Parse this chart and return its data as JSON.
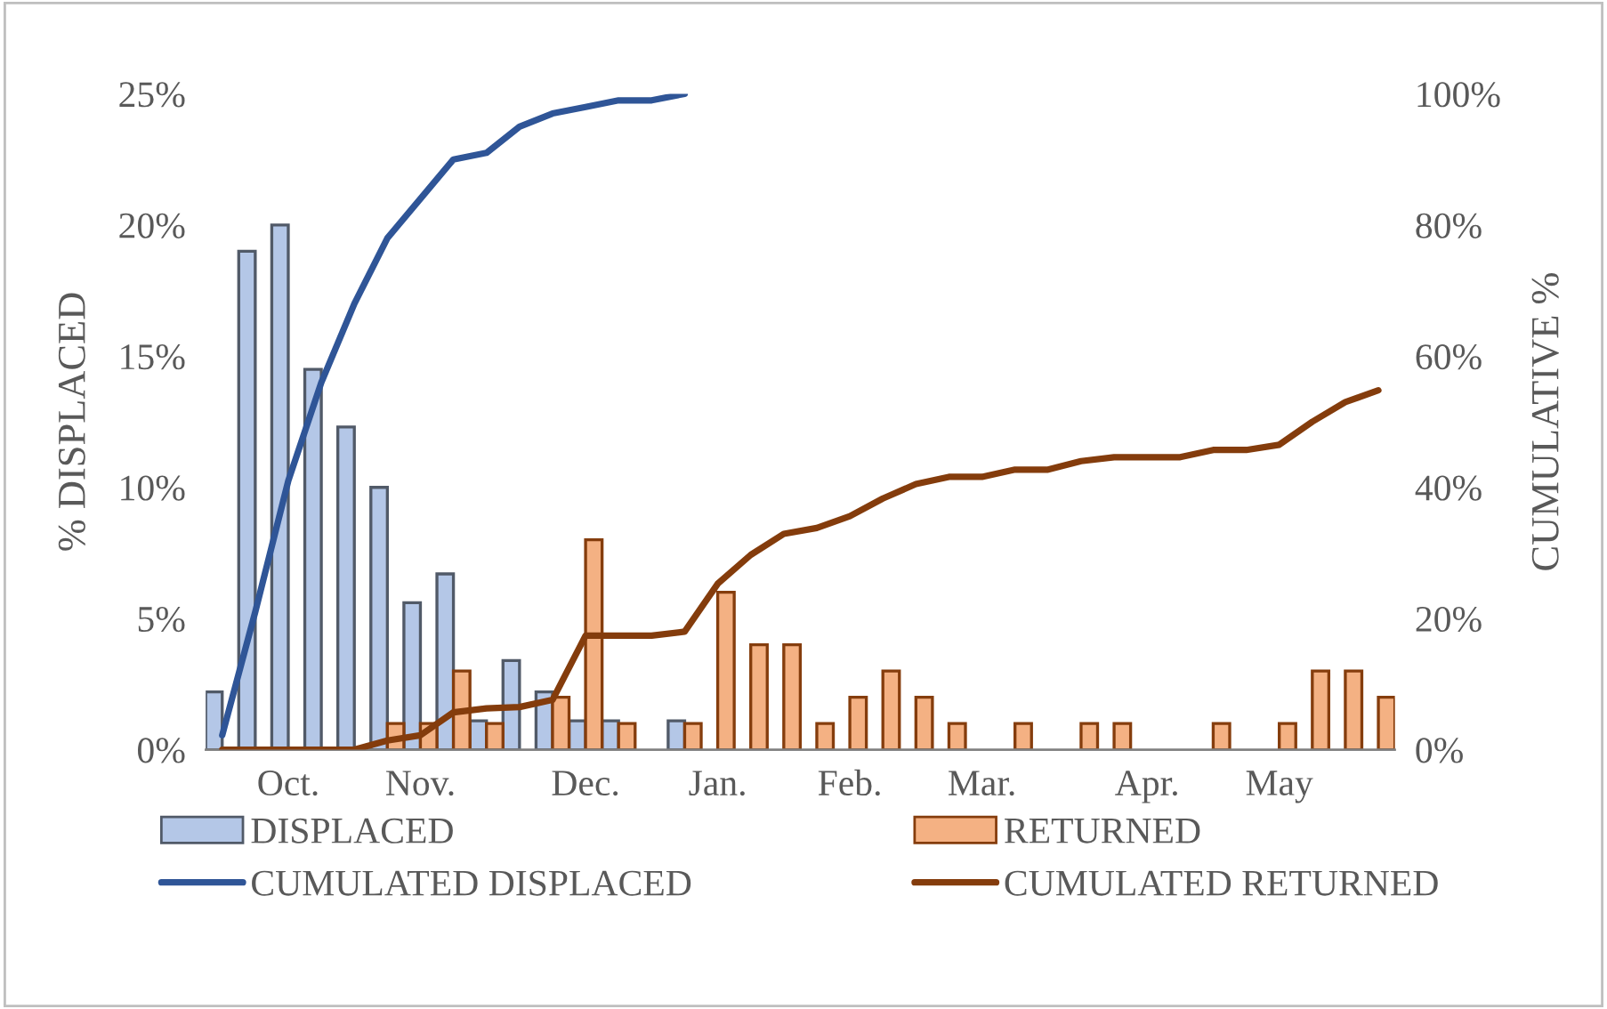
{
  "chart_data": {
    "type": "bar",
    "categories": [
      null,
      null,
      "Oct.",
      null,
      null,
      null,
      "Nov.",
      null,
      null,
      null,
      null,
      "Dec.",
      null,
      null,
      null,
      "Jan.",
      null,
      null,
      null,
      "Feb.",
      null,
      null,
      null,
      "Mar.",
      null,
      null,
      null,
      null,
      "Apr.",
      null,
      null,
      null,
      "May",
      null,
      null,
      null
    ],
    "ylabel": "% DISPLACED",
    "y2label": "CUMULATIVE %",
    "ylim": [
      0,
      25
    ],
    "yticks": [
      {
        "value": 0,
        "label": "0%"
      },
      {
        "value": 5,
        "label": "5%"
      },
      {
        "value": 10,
        "label": "10%"
      },
      {
        "value": 15,
        "label": "15%"
      },
      {
        "value": 20,
        "label": "20%"
      },
      {
        "value": 25,
        "label": "25%"
      }
    ],
    "y2lim": [
      0,
      100
    ],
    "y2ticks": [
      {
        "value": 0,
        "label": "0%"
      },
      {
        "value": 20,
        "label": "20%"
      },
      {
        "value": 40,
        "label": "40%"
      },
      {
        "value": 60,
        "label": "60%"
      },
      {
        "value": 80,
        "label": "80%"
      },
      {
        "value": 100,
        "label": "100%"
      }
    ],
    "legend": "bottom",
    "grid": false,
    "series": [
      {
        "name": "DISPLACED",
        "color": "#b4c7e7",
        "values": [
          2.2,
          19,
          20,
          14.5,
          12.3,
          10,
          5.6,
          6.7,
          1.1,
          3.4,
          2.2,
          1.1,
          1.1,
          null,
          1.1,
          null,
          null,
          null,
          null,
          null,
          null,
          null,
          null,
          null,
          null,
          null,
          null,
          null,
          null,
          null,
          null,
          null,
          null,
          null,
          null,
          null
        ]
      },
      {
        "name": "RETURNED",
        "color": "#f4b183",
        "values": [
          null,
          null,
          null,
          null,
          null,
          1,
          1,
          3,
          1,
          null,
          2,
          8,
          1,
          null,
          1,
          6,
          4,
          4,
          1,
          2,
          3,
          2,
          1,
          null,
          1,
          null,
          1,
          1,
          null,
          null,
          1,
          null,
          1,
          3,
          3,
          2
        ]
      },
      {
        "name": "CUMULATED DISPLACED",
        "type": "line",
        "axis": "y2",
        "color": "#2f5597",
        "values": [
          2.2,
          21,
          41,
          56,
          68,
          78,
          84,
          90,
          91,
          95,
          97,
          98,
          99,
          99,
          100,
          null,
          null,
          null,
          null,
          null,
          null,
          null,
          null,
          null,
          null,
          null,
          null,
          null,
          null,
          null,
          null,
          null,
          null,
          null,
          null,
          null
        ]
      },
      {
        "name": "CUMULATED RETURNED",
        "type": "line",
        "axis": "y2",
        "color": "#843c0c",
        "values": [
          0,
          0,
          0,
          0,
          0,
          1.4,
          2.2,
          5.7,
          6.3,
          6.5,
          7.6,
          17.4,
          17.4,
          17.4,
          18,
          25.3,
          29.7,
          32.9,
          33.8,
          35.6,
          38.3,
          40.5,
          41.6,
          41.6,
          42.7,
          42.7,
          44,
          44.6,
          44.6,
          44.6,
          45.7,
          45.7,
          46.5,
          50,
          53,
          54.8
        ]
      }
    ]
  }
}
